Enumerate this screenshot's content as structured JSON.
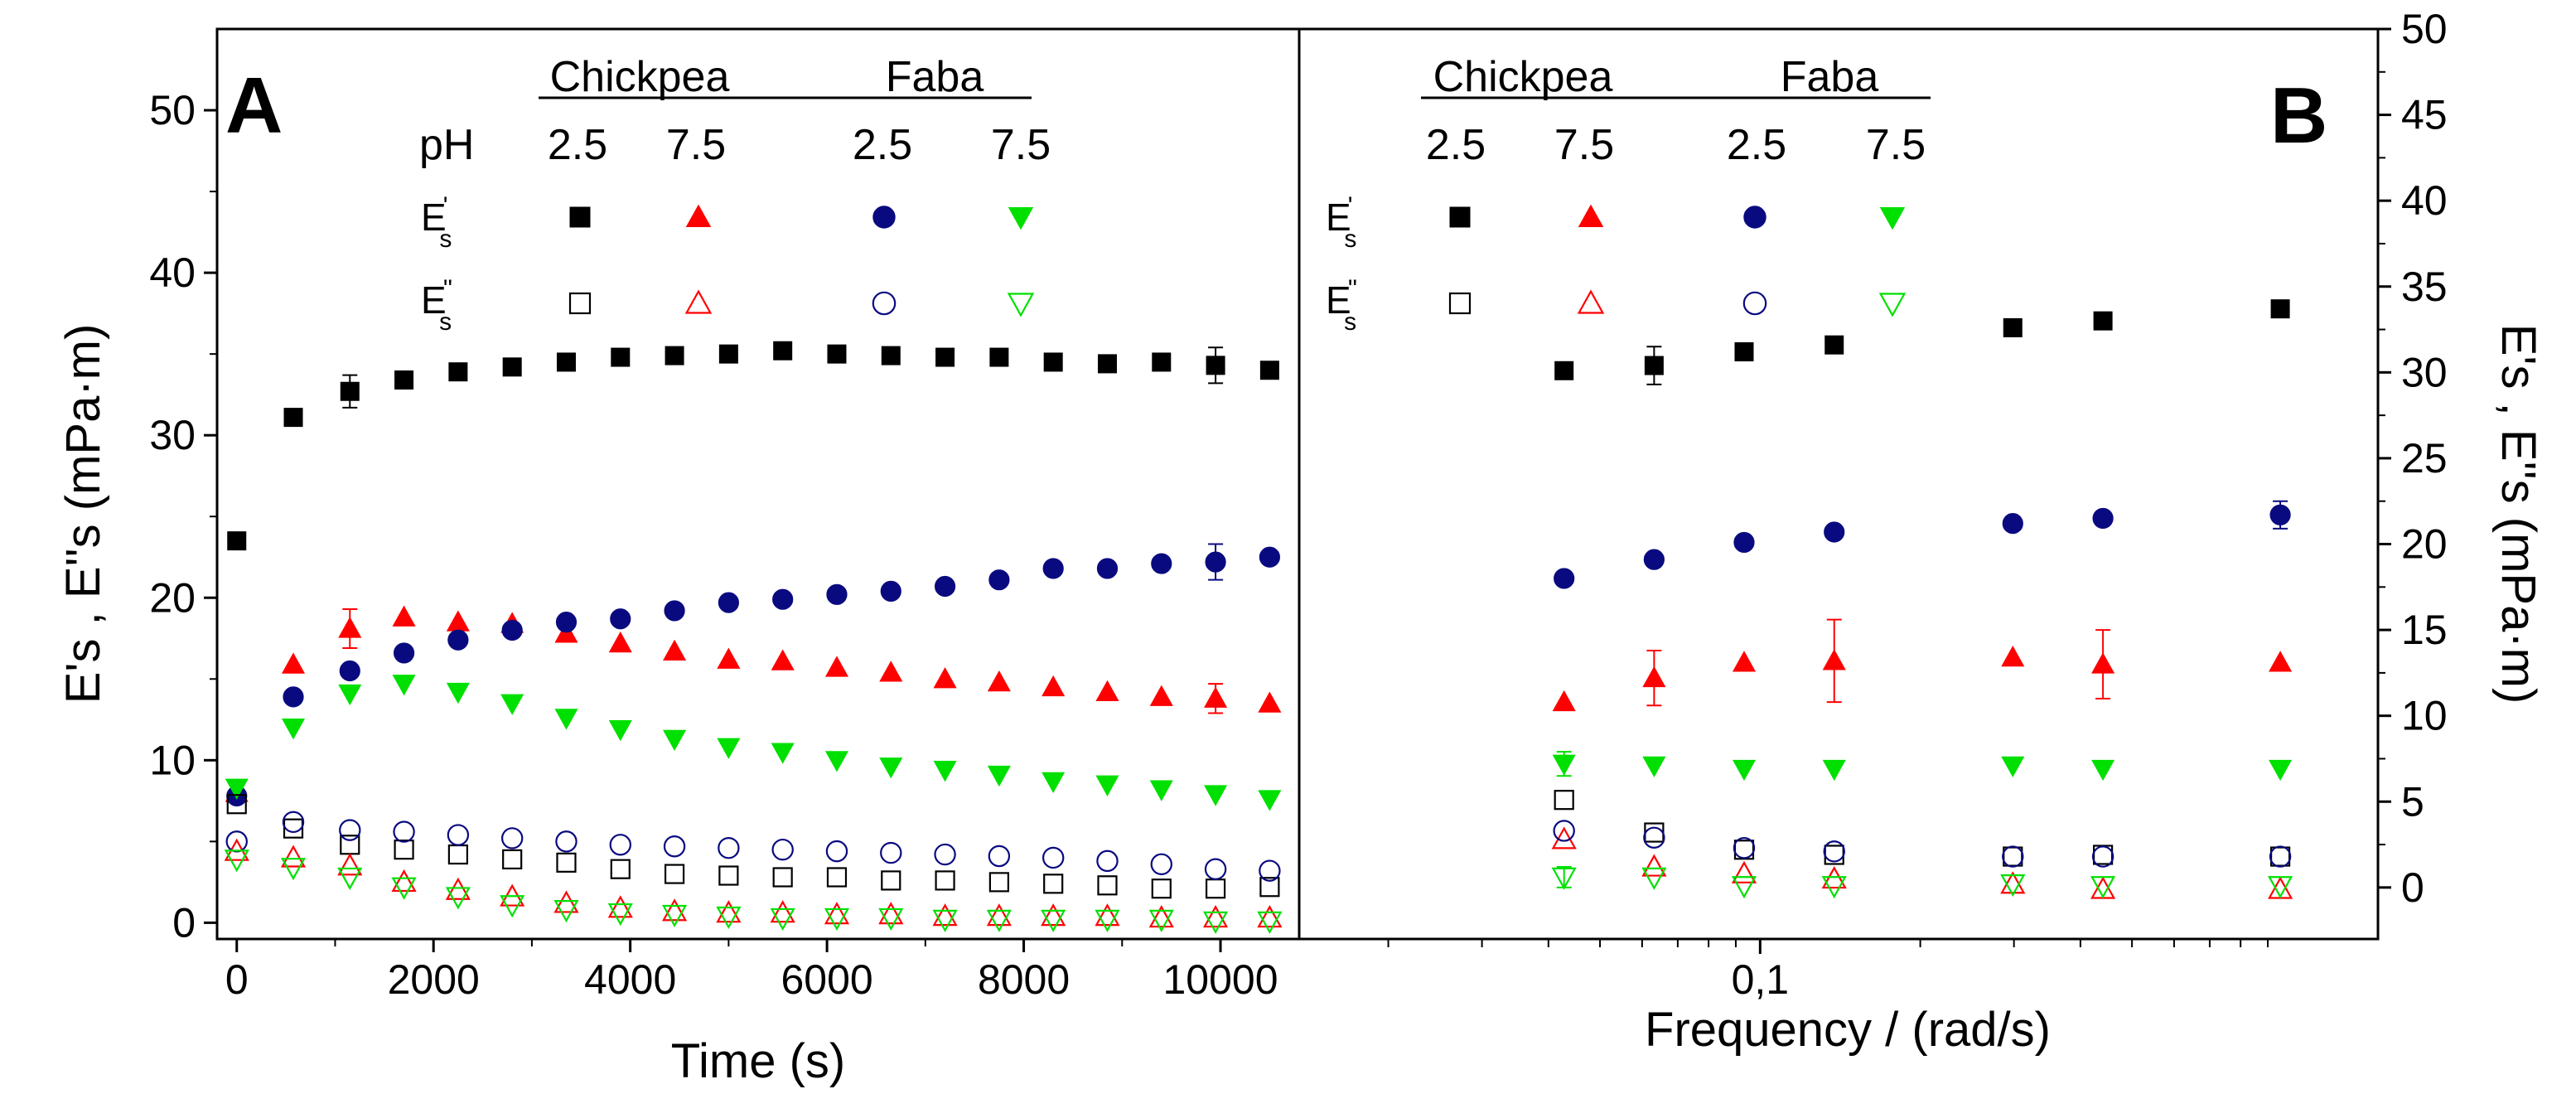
{
  "colors": {
    "chickpea_2_5": "#000000",
    "chickpea_7_5": "#ff0000",
    "faba_2_5": "#0a0a80",
    "faba_7_5": "#00e000"
  },
  "legend": {
    "group_chickpea": "Chickpea",
    "group_faba": "Faba",
    "ph_label": "pH",
    "ph_values": [
      "2.5",
      "7.5",
      "2.5",
      "7.5"
    ],
    "row_es1_base": "E",
    "row_es1_sub": "s",
    "row_es1_sup": "'",
    "row_es2_base": "E",
    "row_es2_sub": "s",
    "row_es2_sup": "''"
  },
  "chart_data": [
    {
      "type": "scatter",
      "panel": "A",
      "xlabel": "Time (s)",
      "ylabel": "E's , E''s (mPa·m)",
      "xlim": [
        -200,
        10800
      ],
      "ylim": [
        -1,
        55
      ],
      "xticks": [
        "0",
        "2000",
        "4000",
        "6000",
        "8000",
        "10000"
      ],
      "yticks": [
        "0",
        "10",
        "20",
        "30",
        "40",
        "50"
      ],
      "series": [
        {
          "name": "Chickpea pH 2.5 E's",
          "marker": "square",
          "filled": true,
          "color_key": "chickpea_2_5",
          "x": [
            0,
            575,
            1150,
            1700,
            2250,
            2800,
            3350,
            3900,
            4450,
            5000,
            5550,
            6100,
            6650,
            7200,
            7750,
            8300,
            8850,
            9400,
            9950,
            10500
          ],
          "y": [
            23.5,
            31.1,
            32.7,
            33.4,
            33.9,
            34.2,
            34.5,
            34.8,
            34.9,
            35.0,
            35.2,
            35.0,
            34.9,
            34.8,
            34.8,
            34.5,
            34.4,
            34.5,
            34.3,
            34.0
          ],
          "err": {
            "2": 1.0,
            "18": 1.1
          }
        },
        {
          "name": "Chickpea pH 7.5 E's",
          "marker": "triangle-up",
          "filled": true,
          "color_key": "chickpea_7_5",
          "x": [
            0,
            575,
            1150,
            1700,
            2250,
            2800,
            3350,
            3900,
            4450,
            5000,
            5550,
            6100,
            6650,
            7200,
            7750,
            8300,
            8850,
            9400,
            9950,
            10500
          ],
          "y": [
            8.0,
            15.9,
            18.1,
            18.8,
            18.5,
            18.4,
            17.8,
            17.2,
            16.7,
            16.2,
            16.1,
            15.7,
            15.4,
            15.0,
            14.8,
            14.5,
            14.2,
            13.9,
            13.8,
            13.5
          ],
          "err": {
            "2": 1.2,
            "18": 0.9
          }
        },
        {
          "name": "Faba pH 2.5 E's",
          "marker": "circle",
          "filled": true,
          "color_key": "faba_2_5",
          "x": [
            0,
            575,
            1150,
            1700,
            2250,
            2800,
            3350,
            3900,
            4450,
            5000,
            5550,
            6100,
            6650,
            7200,
            7750,
            8300,
            8850,
            9400,
            9950,
            10500
          ],
          "y": [
            7.8,
            13.9,
            15.5,
            16.6,
            17.4,
            18.0,
            18.5,
            18.7,
            19.2,
            19.7,
            19.9,
            20.2,
            20.4,
            20.7,
            21.1,
            21.8,
            21.8,
            22.1,
            22.2,
            22.5
          ],
          "err": {
            "18": 1.1
          }
        },
        {
          "name": "Faba pH 7.5 E's",
          "marker": "triangle-down",
          "filled": true,
          "color_key": "faba_7_5",
          "x": [
            0,
            575,
            1150,
            1700,
            2250,
            2800,
            3350,
            3900,
            4450,
            5000,
            5550,
            6100,
            6650,
            7200,
            7750,
            8300,
            8850,
            9400,
            9950,
            10500
          ],
          "y": [
            8.3,
            12.0,
            14.1,
            14.7,
            14.2,
            13.5,
            12.6,
            11.9,
            11.3,
            10.8,
            10.5,
            10.0,
            9.6,
            9.4,
            9.1,
            8.7,
            8.5,
            8.2,
            7.9,
            7.6
          ]
        },
        {
          "name": "Chickpea pH 2.5 E''s",
          "marker": "square",
          "filled": false,
          "color_key": "chickpea_2_5",
          "x": [
            0,
            575,
            1150,
            1700,
            2250,
            2800,
            3350,
            3900,
            4450,
            5000,
            5550,
            6100,
            6650,
            7200,
            7750,
            8300,
            8850,
            9400,
            9950,
            10500
          ],
          "y": [
            7.3,
            5.8,
            4.8,
            4.5,
            4.2,
            3.9,
            3.7,
            3.3,
            3.0,
            2.9,
            2.8,
            2.8,
            2.6,
            2.6,
            2.5,
            2.4,
            2.3,
            2.1,
            2.1,
            2.2
          ]
        },
        {
          "name": "Chickpea pH 7.5 E''s",
          "marker": "triangle-up",
          "filled": false,
          "color_key": "chickpea_7_5",
          "x": [
            0,
            575,
            1150,
            1700,
            2250,
            2800,
            3350,
            3900,
            4450,
            5000,
            5550,
            6100,
            6650,
            7200,
            7750,
            8300,
            8850,
            9400,
            9950,
            10500
          ],
          "y": [
            4.4,
            4.0,
            3.5,
            2.5,
            2.0,
            1.6,
            1.2,
            0.9,
            0.7,
            0.6,
            0.6,
            0.5,
            0.5,
            0.4,
            0.4,
            0.4,
            0.4,
            0.3,
            0.3,
            0.3
          ]
        },
        {
          "name": "Faba pH 2.5 E''s",
          "marker": "circle",
          "filled": false,
          "color_key": "faba_2_5",
          "x": [
            0,
            575,
            1150,
            1700,
            2250,
            2800,
            3350,
            3900,
            4450,
            5000,
            5550,
            6100,
            6650,
            7200,
            7750,
            8300,
            8850,
            9400,
            9950,
            10500
          ],
          "y": [
            5.0,
            6.2,
            5.7,
            5.6,
            5.4,
            5.2,
            5.0,
            4.8,
            4.7,
            4.6,
            4.5,
            4.4,
            4.3,
            4.2,
            4.1,
            4.0,
            3.8,
            3.6,
            3.3,
            3.2
          ]
        },
        {
          "name": "Faba pH 7.5 E''s",
          "marker": "triangle-down",
          "filled": false,
          "color_key": "faba_7_5",
          "x": [
            0,
            575,
            1150,
            1700,
            2250,
            2800,
            3350,
            3900,
            4450,
            5000,
            5550,
            6100,
            6650,
            7200,
            7750,
            8300,
            8850,
            9400,
            9950,
            10500
          ],
          "y": [
            3.9,
            3.4,
            2.8,
            2.2,
            1.6,
            1.1,
            0.8,
            0.6,
            0.5,
            0.4,
            0.3,
            0.3,
            0.3,
            0.2,
            0.2,
            0.2,
            0.2,
            0.2,
            0.1,
            0.1
          ]
        }
      ]
    },
    {
      "type": "scatter",
      "panel": "B",
      "xscale": "log",
      "xlabel": "Frequency / (rad/s)",
      "ylabel": "E's , E''s (mPa·m)",
      "xlim": [
        0.0136,
        1.45
      ],
      "ylim": [
        -3,
        50
      ],
      "xticks": [
        "0,1"
      ],
      "yticks": [
        "0",
        "5",
        "10",
        "15",
        "20",
        "25",
        "30",
        "35",
        "40",
        "45",
        "50"
      ],
      "series": [
        {
          "name": "Chickpea pH 2.5 E's",
          "marker": "square",
          "filled": true,
          "color_key": "chickpea_2_5",
          "x": [
            0.0428,
            0.0632,
            0.0933,
            0.1378,
            0.2985,
            0.441,
            0.95
          ],
          "y": [
            30.1,
            30.4,
            31.2,
            31.6,
            32.6,
            33.0,
            33.7
          ],
          "err": {
            "1": 1.1
          }
        },
        {
          "name": "Chickpea pH 7.5 E's",
          "marker": "triangle-up",
          "filled": true,
          "color_key": "chickpea_7_5",
          "x": [
            0.0428,
            0.0632,
            0.0933,
            0.1378,
            0.2985,
            0.441,
            0.95
          ],
          "y": [
            10.8,
            12.2,
            13.1,
            13.2,
            13.4,
            13.0,
            13.1
          ],
          "err": {
            "1": 1.6,
            "3": 2.4,
            "5": 2.0
          }
        },
        {
          "name": "Faba pH 2.5 E's",
          "marker": "circle",
          "filled": true,
          "color_key": "faba_2_5",
          "x": [
            0.0428,
            0.0632,
            0.0933,
            0.1378,
            0.2985,
            0.441,
            0.95
          ],
          "y": [
            18.0,
            19.1,
            20.1,
            20.7,
            21.2,
            21.5,
            21.7
          ],
          "err": {
            "6": 0.8
          }
        },
        {
          "name": "Faba pH 7.5 E's",
          "marker": "triangle-down",
          "filled": true,
          "color_key": "faba_7_5",
          "x": [
            0.0428,
            0.0632,
            0.0933,
            0.1378,
            0.2985,
            0.441,
            0.95
          ],
          "y": [
            7.2,
            7.1,
            6.9,
            6.9,
            7.1,
            6.9,
            6.9
          ],
          "err": {
            "0": 0.7
          }
        },
        {
          "name": "Chickpea pH 2.5 E''s",
          "marker": "square",
          "filled": false,
          "color_key": "chickpea_2_5",
          "x": [
            0.0428,
            0.0632,
            0.0933,
            0.1378,
            0.2985,
            0.441,
            0.95
          ],
          "y": [
            5.1,
            3.2,
            2.2,
            1.9,
            1.8,
            1.9,
            1.8
          ]
        },
        {
          "name": "Chickpea pH 7.5 E''s",
          "marker": "triangle-up",
          "filled": false,
          "color_key": "chickpea_7_5",
          "x": [
            0.0428,
            0.0632,
            0.0933,
            0.1378,
            0.2985,
            0.441,
            0.95
          ],
          "y": [
            2.8,
            1.2,
            0.8,
            0.5,
            0.2,
            -0.1,
            -0.1
          ]
        },
        {
          "name": "Faba pH 2.5 E''s",
          "marker": "circle",
          "filled": false,
          "color_key": "faba_2_5",
          "x": [
            0.0428,
            0.0632,
            0.0933,
            0.1378,
            0.2985,
            0.441,
            0.95
          ],
          "y": [
            3.3,
            2.9,
            2.3,
            2.1,
            1.8,
            1.8,
            1.8
          ]
        },
        {
          "name": "Faba pH 7.5 E''s",
          "marker": "triangle-down",
          "filled": false,
          "color_key": "faba_7_5",
          "x": [
            0.0428,
            0.0632,
            0.0933,
            0.1378,
            0.2985,
            0.441,
            0.95
          ],
          "y": [
            0.6,
            0.6,
            0.1,
            0.1,
            0.2,
            0.1,
            0.1
          ],
          "err": {
            "0": 0.6
          }
        }
      ]
    }
  ]
}
